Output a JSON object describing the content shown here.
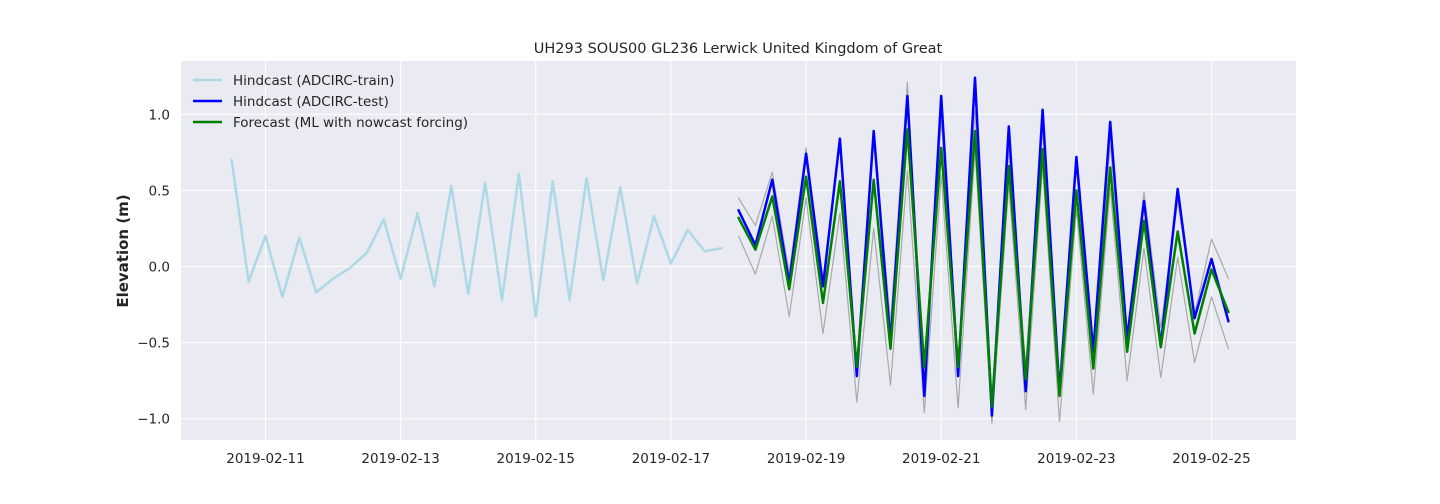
{
  "chart_data": {
    "type": "line",
    "title": "UH293 SOUS00 GL236 Lerwick United Kingdom of Great",
    "xlabel": "",
    "ylabel": "Elevation (m)",
    "xlim": [
      "2019-02-09T18:00",
      "2019-02-26T06:00"
    ],
    "ylim": [
      -1.14,
      1.35
    ],
    "x_ticks": [
      "2019-02-11",
      "2019-02-13",
      "2019-02-15",
      "2019-02-17",
      "2019-02-19",
      "2019-02-21",
      "2019-02-23",
      "2019-02-25"
    ],
    "y_ticks": [
      -1.0,
      -0.5,
      0.0,
      0.5,
      1.0
    ],
    "y_tick_labels": [
      "−1.0",
      "−0.5",
      "0.0",
      "0.5",
      "1.0"
    ],
    "grid": true,
    "legend_position": "top-left",
    "colors": {
      "background": "#eaeaf2",
      "grid": "#ffffff",
      "train": "#add8e6",
      "test": "#0000ff",
      "forecast": "#008000",
      "band": "#a9a9a9"
    },
    "series": [
      {
        "name": "Hindcast (ADCIRC-train)",
        "color": "#add8e6",
        "x": [
          "2019-02-10T12:00",
          "2019-02-10T18:00",
          "2019-02-11T00:00",
          "2019-02-11T06:00",
          "2019-02-11T12:00",
          "2019-02-11T18:00",
          "2019-02-12T00:00",
          "2019-02-12T06:00",
          "2019-02-12T12:00",
          "2019-02-12T18:00",
          "2019-02-13T00:00",
          "2019-02-13T06:00",
          "2019-02-13T12:00",
          "2019-02-13T18:00",
          "2019-02-14T00:00",
          "2019-02-14T06:00",
          "2019-02-14T12:00",
          "2019-02-14T18:00",
          "2019-02-15T00:00",
          "2019-02-15T06:00",
          "2019-02-15T12:00",
          "2019-02-15T18:00",
          "2019-02-16T00:00",
          "2019-02-16T06:00",
          "2019-02-16T12:00",
          "2019-02-16T18:00",
          "2019-02-17T00:00",
          "2019-02-17T06:00",
          "2019-02-17T12:00",
          "2019-02-17T18:00"
        ],
        "values": [
          0.7,
          -0.1,
          0.2,
          -0.2,
          0.19,
          -0.17,
          -0.08,
          -0.01,
          0.09,
          0.31,
          -0.08,
          0.35,
          -0.13,
          0.53,
          -0.18,
          0.55,
          -0.22,
          0.61,
          -0.33,
          0.56,
          -0.22,
          0.58,
          -0.09,
          0.52,
          -0.11,
          0.33,
          0.02,
          0.24,
          0.1,
          0.12
        ]
      },
      {
        "name": "Hindcast (ADCIRC-test)",
        "color": "#0000ff",
        "x": [
          "2019-02-18T00:00",
          "2019-02-18T06:00",
          "2019-02-18T12:00",
          "2019-02-18T18:00",
          "2019-02-19T00:00",
          "2019-02-19T06:00",
          "2019-02-19T12:00",
          "2019-02-19T18:00",
          "2019-02-20T00:00",
          "2019-02-20T06:00",
          "2019-02-20T12:00",
          "2019-02-20T18:00",
          "2019-02-21T00:00",
          "2019-02-21T06:00",
          "2019-02-21T12:00",
          "2019-02-21T18:00",
          "2019-02-22T00:00",
          "2019-02-22T06:00",
          "2019-02-22T12:00",
          "2019-02-22T18:00",
          "2019-02-23T00:00",
          "2019-02-23T06:00",
          "2019-02-23T12:00",
          "2019-02-23T18:00",
          "2019-02-24T00:00",
          "2019-02-24T06:00",
          "2019-02-24T12:00",
          "2019-02-24T18:00",
          "2019-02-25T00:00",
          "2019-02-25T06:00"
        ],
        "values": [
          0.37,
          0.14,
          0.57,
          -0.11,
          0.74,
          -0.13,
          0.84,
          -0.72,
          0.89,
          -0.5,
          1.12,
          -0.85,
          1.12,
          -0.72,
          1.24,
          -0.98,
          0.92,
          -0.82,
          1.03,
          -0.83,
          0.72,
          -0.56,
          0.95,
          -0.48,
          0.43,
          -0.52,
          0.51,
          -0.34,
          0.05,
          -0.36
        ]
      },
      {
        "name": "Forecast (ML with nowcast forcing)",
        "color": "#008000",
        "x": [
          "2019-02-18T00:00",
          "2019-02-18T06:00",
          "2019-02-18T12:00",
          "2019-02-18T18:00",
          "2019-02-19T00:00",
          "2019-02-19T06:00",
          "2019-02-19T12:00",
          "2019-02-19T18:00",
          "2019-02-20T00:00",
          "2019-02-20T06:00",
          "2019-02-20T12:00",
          "2019-02-20T18:00",
          "2019-02-21T00:00",
          "2019-02-21T06:00",
          "2019-02-21T12:00",
          "2019-02-21T18:00",
          "2019-02-22T00:00",
          "2019-02-22T06:00",
          "2019-02-22T12:00",
          "2019-02-22T18:00",
          "2019-02-23T00:00",
          "2019-02-23T06:00",
          "2019-02-23T12:00",
          "2019-02-23T18:00",
          "2019-02-24T00:00",
          "2019-02-24T06:00",
          "2019-02-24T12:00",
          "2019-02-24T18:00",
          "2019-02-25T00:00",
          "2019-02-25T06:00"
        ],
        "values": [
          0.32,
          0.11,
          0.46,
          -0.15,
          0.59,
          -0.24,
          0.56,
          -0.66,
          0.57,
          -0.54,
          0.9,
          -0.66,
          0.78,
          -0.66,
          0.89,
          -0.92,
          0.66,
          -0.74,
          0.77,
          -0.85,
          0.5,
          -0.67,
          0.65,
          -0.56,
          0.3,
          -0.53,
          0.23,
          -0.44,
          -0.02,
          -0.3
        ]
      },
      {
        "color": "#a9a9a9",
        "x": [
          "2019-02-18T00:00",
          "2019-02-18T06:00",
          "2019-02-18T12:00",
          "2019-02-18T18:00",
          "2019-02-19T00:00",
          "2019-02-19T06:00",
          "2019-02-19T12:00",
          "2019-02-19T18:00",
          "2019-02-20T00:00",
          "2019-02-20T06:00",
          "2019-02-20T12:00",
          "2019-02-20T18:00",
          "2019-02-21T00:00",
          "2019-02-21T06:00",
          "2019-02-21T12:00",
          "2019-02-21T18:00",
          "2019-02-22T00:00",
          "2019-02-22T06:00",
          "2019-02-22T12:00",
          "2019-02-22T18:00",
          "2019-02-23T00:00",
          "2019-02-23T06:00",
          "2019-02-23T12:00",
          "2019-02-23T18:00",
          "2019-02-24T00:00",
          "2019-02-24T06:00",
          "2019-02-24T12:00",
          "2019-02-24T18:00",
          "2019-02-25T00:00",
          "2019-02-25T06:00"
        ],
        "values": [
          0.45,
          0.27,
          0.62,
          -0.04,
          0.78,
          -0.08,
          0.82,
          -0.63,
          0.89,
          -0.38,
          1.21,
          -0.76,
          0.96,
          -0.63,
          1.02,
          -0.89,
          0.77,
          -0.65,
          0.9,
          -0.8,
          0.65,
          -0.56,
          0.8,
          -0.43,
          0.49,
          -0.4,
          0.43,
          -0.31,
          0.18,
          -0.08
        ]
      },
      {
        "color": "#a9a9a9",
        "x": [
          "2019-02-18T00:00",
          "2019-02-18T06:00",
          "2019-02-18T12:00",
          "2019-02-18T18:00",
          "2019-02-19T00:00",
          "2019-02-19T06:00",
          "2019-02-19T12:00",
          "2019-02-19T18:00",
          "2019-02-20T00:00",
          "2019-02-20T06:00",
          "2019-02-20T12:00",
          "2019-02-20T18:00",
          "2019-02-21T00:00",
          "2019-02-21T06:00",
          "2019-02-21T12:00",
          "2019-02-21T18:00",
          "2019-02-22T00:00",
          "2019-02-22T06:00",
          "2019-02-22T12:00",
          "2019-02-22T18:00",
          "2019-02-23T00:00",
          "2019-02-23T06:00",
          "2019-02-23T12:00",
          "2019-02-23T18:00",
          "2019-02-24T00:00",
          "2019-02-24T06:00",
          "2019-02-24T12:00",
          "2019-02-24T18:00",
          "2019-02-25T00:00",
          "2019-02-25T06:00"
        ],
        "values": [
          0.2,
          -0.05,
          0.33,
          -0.33,
          0.45,
          -0.44,
          0.35,
          -0.89,
          0.25,
          -0.78,
          0.63,
          -0.96,
          0.6,
          -0.93,
          0.77,
          -1.03,
          0.54,
          -0.94,
          0.66,
          -1.02,
          0.38,
          -0.84,
          0.52,
          -0.75,
          0.12,
          -0.73,
          0.06,
          -0.63,
          -0.2,
          -0.54
        ]
      }
    ]
  }
}
